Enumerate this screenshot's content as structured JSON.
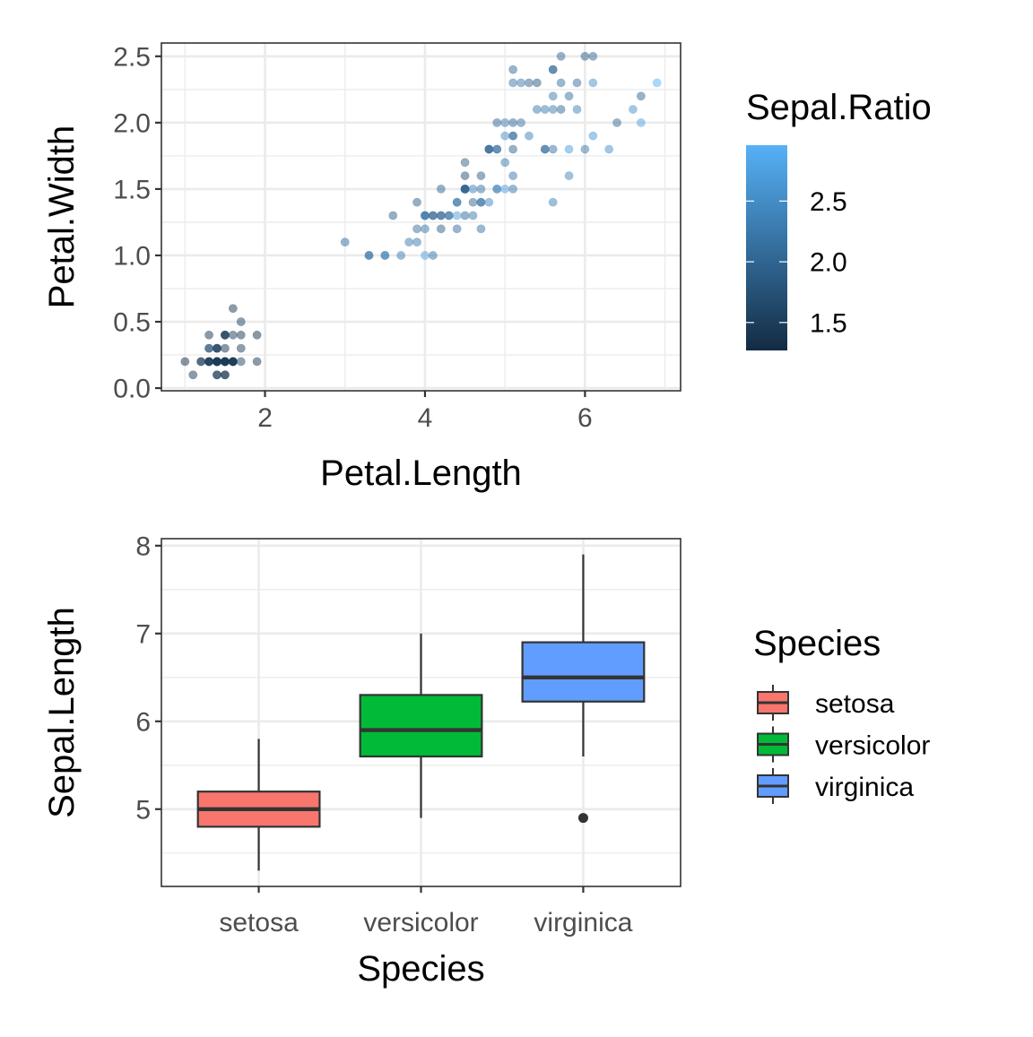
{
  "chart_data": [
    {
      "type": "scatter",
      "xlabel": "Petal.Length",
      "ylabel": "Petal.Width",
      "xlim": [
        0.705,
        7.195
      ],
      "ylim": [
        -0.02,
        2.6
      ],
      "x_ticks": [
        2,
        4,
        6
      ],
      "y_ticks": [
        "0.0",
        "0.5",
        "1.0",
        "1.5",
        "2.0",
        "2.5"
      ],
      "color_scale": {
        "title": "Sepal.Ratio",
        "low_color": "#132B43",
        "high_color": "#56B1F7",
        "range": [
          1.27,
          2.96
        ],
        "ticks": [
          "1.5",
          "2.0",
          "2.5"
        ]
      },
      "point_alpha": 0.5,
      "points": [
        [
          1.4,
          0.2,
          1.46
        ],
        [
          1.4,
          0.2,
          1.63
        ],
        [
          1.3,
          0.2,
          1.47
        ],
        [
          1.5,
          0.2,
          1.48
        ],
        [
          1.4,
          0.2,
          1.39
        ],
        [
          1.7,
          0.4,
          1.38
        ],
        [
          1.4,
          0.3,
          1.35
        ],
        [
          1.5,
          0.2,
          1.47
        ],
        [
          1.4,
          0.2,
          1.52
        ],
        [
          1.5,
          0.1,
          1.58
        ],
        [
          1.5,
          0.2,
          1.46
        ],
        [
          1.6,
          0.2,
          1.41
        ],
        [
          1.4,
          0.1,
          1.6
        ],
        [
          1.1,
          0.1,
          1.43
        ],
        [
          1.2,
          0.2,
          1.32
        ],
        [
          1.5,
          0.4,
          1.3
        ],
        [
          1.3,
          0.4,
          1.38
        ],
        [
          1.4,
          0.3,
          1.46
        ],
        [
          1.7,
          0.3,
          1.5
        ],
        [
          1.5,
          0.3,
          1.34
        ],
        [
          1.7,
          0.2,
          1.59
        ],
        [
          1.5,
          0.4,
          1.38
        ],
        [
          1.0,
          0.2,
          1.28
        ],
        [
          1.7,
          0.5,
          1.55
        ],
        [
          1.9,
          0.2,
          1.41
        ],
        [
          1.6,
          0.2,
          1.67
        ],
        [
          1.6,
          0.4,
          1.47
        ],
        [
          1.5,
          0.2,
          1.49
        ],
        [
          1.4,
          0.2,
          1.53
        ],
        [
          1.6,
          0.2,
          1.47
        ],
        [
          1.6,
          0.2,
          1.55
        ],
        [
          1.5,
          0.4,
          1.59
        ],
        [
          1.5,
          0.1,
          1.27
        ],
        [
          1.4,
          0.2,
          1.31
        ],
        [
          1.5,
          0.2,
          1.58
        ],
        [
          1.2,
          0.2,
          1.56
        ],
        [
          1.3,
          0.2,
          1.57
        ],
        [
          1.4,
          0.1,
          1.36
        ],
        [
          1.3,
          0.2,
          1.47
        ],
        [
          1.5,
          0.2,
          1.5
        ],
        [
          1.3,
          0.3,
          1.43
        ],
        [
          1.3,
          0.3,
          1.96
        ],
        [
          1.3,
          0.2,
          1.38
        ],
        [
          1.6,
          0.6,
          1.43
        ],
        [
          1.9,
          0.4,
          1.34
        ],
        [
          1.4,
          0.3,
          1.6
        ],
        [
          1.6,
          0.2,
          1.34
        ],
        [
          1.4,
          0.2,
          1.44
        ],
        [
          1.5,
          0.2,
          1.43
        ],
        [
          1.4,
          0.2,
          1.52
        ],
        [
          4.7,
          1.4,
          2.19
        ],
        [
          4.5,
          1.5,
          2.0
        ],
        [
          4.9,
          1.5,
          2.23
        ],
        [
          4.0,
          1.3,
          2.39
        ],
        [
          4.6,
          1.5,
          2.36
        ],
        [
          4.5,
          1.3,
          2.04
        ],
        [
          4.7,
          1.6,
          1.91
        ],
        [
          3.3,
          1.0,
          2.04
        ],
        [
          4.6,
          1.3,
          2.28
        ],
        [
          3.9,
          1.4,
          1.93
        ],
        [
          3.5,
          1.0,
          2.5
        ],
        [
          4.2,
          1.5,
          1.97
        ],
        [
          4.0,
          1.0,
          2.73
        ],
        [
          4.7,
          1.4,
          2.1
        ],
        [
          3.6,
          1.3,
          1.93
        ],
        [
          4.4,
          1.4,
          2.16
        ],
        [
          4.5,
          1.5,
          1.87
        ],
        [
          4.1,
          1.0,
          2.15
        ],
        [
          4.5,
          1.5,
          2.82
        ],
        [
          3.9,
          1.1,
          2.24
        ],
        [
          4.8,
          1.8,
          1.84
        ],
        [
          4.0,
          1.3,
          2.18
        ],
        [
          4.9,
          1.5,
          2.52
        ],
        [
          4.7,
          1.2,
          2.18
        ],
        [
          4.3,
          1.3,
          2.21
        ],
        [
          4.4,
          1.4,
          2.2
        ],
        [
          4.8,
          1.4,
          2.43
        ],
        [
          5.0,
          1.7,
          2.23
        ],
        [
          4.5,
          1.5,
          2.07
        ],
        [
          3.5,
          1.0,
          2.19
        ],
        [
          3.8,
          1.1,
          2.29
        ],
        [
          3.7,
          1.0,
          2.29
        ],
        [
          3.9,
          1.2,
          2.15
        ],
        [
          5.1,
          1.6,
          2.22
        ],
        [
          4.5,
          1.5,
          1.8
        ],
        [
          4.5,
          1.6,
          1.76
        ],
        [
          4.7,
          1.5,
          2.16
        ],
        [
          4.4,
          1.3,
          2.74
        ],
        [
          4.1,
          1.3,
          1.87
        ],
        [
          4.0,
          1.3,
          2.2
        ],
        [
          4.4,
          1.2,
          2.12
        ],
        [
          4.6,
          1.4,
          2.03
        ],
        [
          4.0,
          1.2,
          2.23
        ],
        [
          3.3,
          1.0,
          2.17
        ],
        [
          4.2,
          1.3,
          2.04
        ],
        [
          4.2,
          1.2,
          1.9
        ],
        [
          4.2,
          1.3,
          1.97
        ],
        [
          4.3,
          1.3,
          2.14
        ],
        [
          3.0,
          1.1,
          2.04
        ],
        [
          4.1,
          1.3,
          2.0
        ],
        [
          6.0,
          2.5,
          1.91
        ],
        [
          5.1,
          1.9,
          2.15
        ],
        [
          5.9,
          2.1,
          2.37
        ],
        [
          5.6,
          1.8,
          2.17
        ],
        [
          5.8,
          2.2,
          2.17
        ],
        [
          6.6,
          2.1,
          2.53
        ],
        [
          4.5,
          1.7,
          1.96
        ],
        [
          6.3,
          1.8,
          2.52
        ],
        [
          5.8,
          1.8,
          2.68
        ],
        [
          6.1,
          2.5,
          2.0
        ],
        [
          5.1,
          2.0,
          2.0
        ],
        [
          5.3,
          1.9,
          2.37
        ],
        [
          5.5,
          2.1,
          2.27
        ],
        [
          5.0,
          2.0,
          2.28
        ],
        [
          5.1,
          2.4,
          2.07
        ],
        [
          5.3,
          2.3,
          2.0
        ],
        [
          5.5,
          1.8,
          2.17
        ],
        [
          6.7,
          2.2,
          2.03
        ],
        [
          6.9,
          2.3,
          2.96
        ],
        [
          5.0,
          1.5,
          2.73
        ],
        [
          5.7,
          2.3,
          2.16
        ],
        [
          4.9,
          2.0,
          2.0
        ],
        [
          6.7,
          2.0,
          2.75
        ],
        [
          4.9,
          1.8,
          2.33
        ],
        [
          5.7,
          2.1,
          2.03
        ],
        [
          6.0,
          1.8,
          2.25
        ],
        [
          4.8,
          1.8,
          2.21
        ],
        [
          4.9,
          1.8,
          2.03
        ],
        [
          5.6,
          2.1,
          2.29
        ],
        [
          5.8,
          1.6,
          2.4
        ],
        [
          6.1,
          1.9,
          2.64
        ],
        [
          6.4,
          2.0,
          2.08
        ],
        [
          5.6,
          2.2,
          2.29
        ],
        [
          5.1,
          1.5,
          2.24
        ],
        [
          5.6,
          1.4,
          2.35
        ],
        [
          6.1,
          2.3,
          2.57
        ],
        [
          5.6,
          2.4,
          1.86
        ],
        [
          5.5,
          1.8,
          2.07
        ],
        [
          4.8,
          1.8,
          2.0
        ],
        [
          5.4,
          2.1,
          2.23
        ],
        [
          5.6,
          2.4,
          2.16
        ],
        [
          5.1,
          2.3,
          2.23
        ],
        [
          5.1,
          1.9,
          2.15
        ],
        [
          5.9,
          2.3,
          2.13
        ],
        [
          5.7,
          2.5,
          2.03
        ],
        [
          5.2,
          2.3,
          2.23
        ],
        [
          5.0,
          1.9,
          2.52
        ],
        [
          5.2,
          2.0,
          2.17
        ],
        [
          5.4,
          2.3,
          1.82
        ],
        [
          5.1,
          1.8,
          1.97
        ]
      ]
    },
    {
      "type": "boxplot",
      "xlabel": "Species",
      "ylabel": "Sepal.Length",
      "ylim": [
        4.12,
        8.08
      ],
      "y_ticks": [
        5,
        6,
        7,
        8
      ],
      "categories": [
        "setosa",
        "versicolor",
        "virginica"
      ],
      "boxes": [
        {
          "name": "setosa",
          "color": "#F8766D",
          "min": 4.3,
          "q1": 4.8,
          "median": 5.0,
          "q3": 5.2,
          "max": 5.8,
          "outliers": []
        },
        {
          "name": "versicolor",
          "color": "#00BA38",
          "min": 4.9,
          "q1": 5.6,
          "median": 5.9,
          "q3": 6.3,
          "max": 7.0,
          "outliers": []
        },
        {
          "name": "virginica",
          "color": "#619CFF",
          "min": 5.6,
          "q1": 6.225,
          "median": 6.5,
          "q3": 6.9,
          "max": 7.9,
          "outliers": [
            4.9
          ]
        }
      ],
      "legend": {
        "title": "Species",
        "entries": [
          "setosa",
          "versicolor",
          "virginica"
        ]
      }
    }
  ]
}
